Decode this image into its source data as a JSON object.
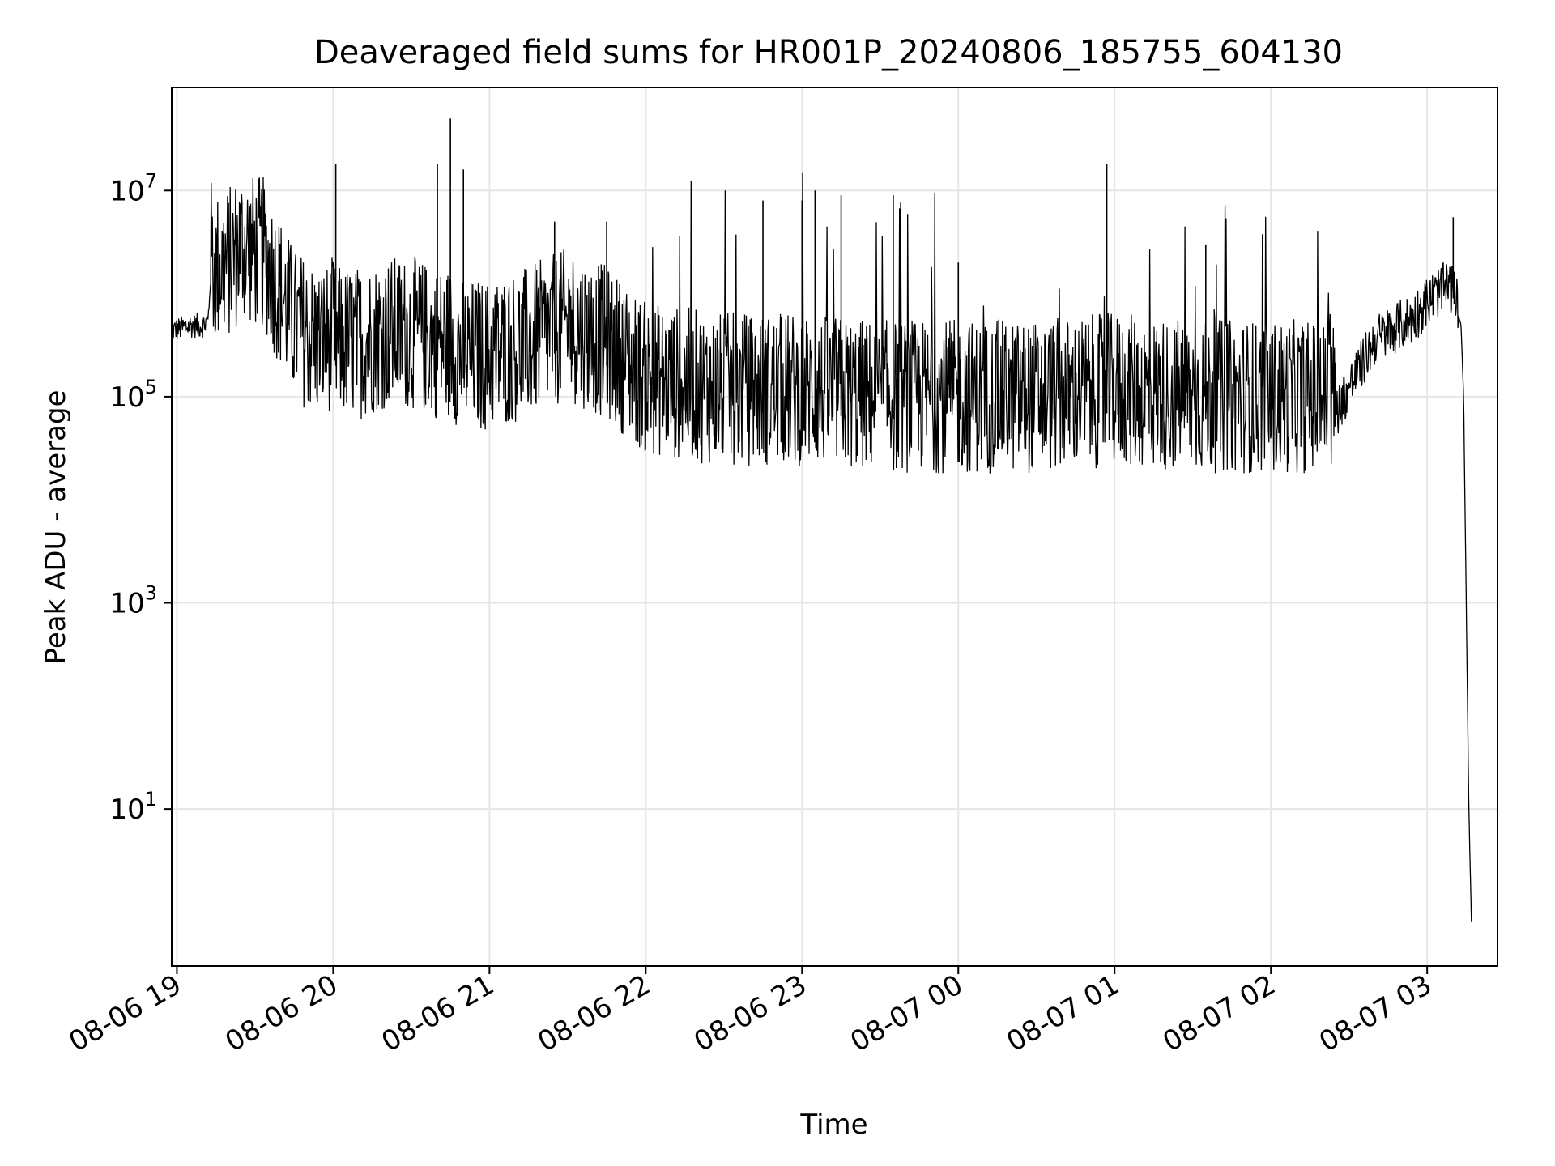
{
  "chart_data": {
    "type": "line",
    "title": "Deaveraged field sums for HR001P_20240806_185755_604130",
    "xlabel": "Time",
    "ylabel": "Peak ADU - average",
    "yscale": "log",
    "grid": true,
    "line_color": "#000000",
    "grid_color": "#e6e6e6",
    "xlim": [
      "2024-08-06 18:58",
      "2024-08-07 03:27"
    ],
    "ylim": [
      0.3,
      100000000
    ],
    "x_ticks": [
      "2024-08-06 19:00",
      "2024-08-06 20:00",
      "2024-08-06 21:00",
      "2024-08-06 22:00",
      "2024-08-06 23:00",
      "2024-08-07 00:00",
      "2024-08-07 01:00",
      "2024-08-07 02:00",
      "2024-08-07 03:00"
    ],
    "x_tick_labels": [
      "08-06 19",
      "08-06 20",
      "08-06 21",
      "08-06 22",
      "08-06 23",
      "08-07 00",
      "08-07 01",
      "08-07 02",
      "08-07 03"
    ],
    "y_ticks": [
      {
        "value": 10,
        "base": "10",
        "exp": "1"
      },
      {
        "value": 1000,
        "base": "10",
        "exp": "3"
      },
      {
        "value": 100000,
        "base": "10",
        "exp": "5"
      },
      {
        "value": 10000000,
        "base": "10",
        "exp": "7"
      }
    ],
    "series": [
      {
        "x": [
          "2024-08-06 18:58",
          "2024-08-06 19:05",
          "2024-08-06 19:10",
          "2024-08-06 19:12",
          "2024-08-06 19:13",
          "2024-08-06 19:14",
          "2024-08-06 19:20",
          "2024-08-06 19:25",
          "2024-08-06 19:30",
          "2024-08-06 19:33",
          "2024-08-06 19:40",
          "2024-08-06 19:45",
          "2024-08-06 19:55",
          "2024-08-06 20:00",
          "2024-08-06 20:01",
          "2024-08-06 20:10",
          "2024-08-06 20:20",
          "2024-08-06 20:30",
          "2024-08-06 20:40",
          "2024-08-06 20:45",
          "2024-08-06 20:50",
          "2024-08-06 21:00",
          "2024-08-06 21:15",
          "2024-08-06 21:30",
          "2024-08-06 21:45",
          "2024-08-06 22:00",
          "2024-08-06 22:30",
          "2024-08-06 23:00",
          "2024-08-06 23:30",
          "2024-08-07 00:00",
          "2024-08-07 00:30",
          "2024-08-07 01:00",
          "2024-08-07 01:30",
          "2024-08-07 02:00",
          "2024-08-07 02:15",
          "2024-08-07 02:25",
          "2024-08-07 02:40",
          "2024-08-07 02:55",
          "2024-08-07 03:00",
          "2024-08-07 03:05",
          "2024-08-07 03:08",
          "2024-08-07 03:10",
          "2024-08-07 03:13",
          "2024-08-07 03:14",
          "2024-08-07 03:15",
          "2024-08-07 03:16",
          "2024-08-07 03:17"
        ],
        "y": [
          400000,
          450000,
          450000,
          500000,
          1500000,
          1000000,
          1200000,
          1800000,
          1500000,
          1500000,
          600000,
          300000,
          200000,
          250000,
          200000,
          200000,
          250000,
          250000,
          200000,
          200000,
          150000,
          150000,
          200000,
          300000,
          200000,
          90000,
          70000,
          70000,
          60000,
          60000,
          60000,
          70000,
          60000,
          60000,
          60000,
          60000,
          300000,
          500000,
          700000,
          900000,
          1000000,
          900000,
          500000,
          100000,
          1000,
          10,
          0.8
        ]
      }
    ],
    "spikes": [
      {
        "x": "2024-08-06 20:01",
        "y": 18000000
      },
      {
        "x": "2024-08-06 20:40",
        "y": 18000000
      },
      {
        "x": "2024-08-06 20:45",
        "y": 50000000
      },
      {
        "x": "2024-08-06 20:50",
        "y": 16000000
      },
      {
        "x": "2024-08-06 21:25",
        "y": 5000000
      },
      {
        "x": "2024-08-06 21:45",
        "y": 5000000
      },
      {
        "x": "2024-08-06 22:45",
        "y": 8000000
      },
      {
        "x": "2024-08-06 23:00",
        "y": 8000000
      },
      {
        "x": "2024-08-06 23:05",
        "y": 10000000
      },
      {
        "x": "2024-08-06 23:15",
        "y": 9000000
      },
      {
        "x": "2024-08-06 23:35",
        "y": 9000000
      },
      {
        "x": "2024-08-07 00:00",
        "y": 2000000
      },
      {
        "x": "2024-08-07 00:57",
        "y": 18000000
      },
      {
        "x": "2024-08-07 01:35",
        "y": 3000000
      },
      {
        "x": "2024-08-07 03:10",
        "y": 5500000
      }
    ]
  }
}
